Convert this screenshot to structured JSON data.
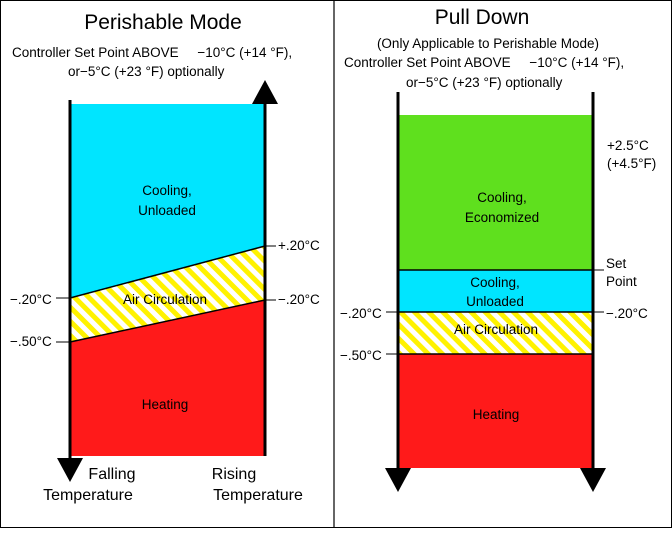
{
  "colors": {
    "cooling_unloaded": "#00e5ff",
    "cooling_economized": "#5fe01e",
    "heating": "#ff1a1a",
    "air_circulation_stripe_1": "#fff200",
    "air_circulation_stripe_2": "#ffffff",
    "lines": "#000000",
    "background": "#ffffff"
  },
  "perishable": {
    "title": "Perishable Mode",
    "setpoint_line1": "Controller Set Point ABOVE     −10°C (+14 °F),",
    "setpoint_line2": "or−5°C (+23 °F) optionally",
    "zones": {
      "cooling_unloaded": [
        "Cooling,",
        "Unloaded"
      ],
      "air_circulation": "Air Circulation",
      "heating": "Heating"
    },
    "left_labels": {
      "upper": "−.20°C",
      "lower": "−.50°C"
    },
    "right_labels": {
      "upper": "+.20°C",
      "lower": "−.20°C"
    },
    "falling": [
      "Falling",
      "Temperature"
    ],
    "rising": [
      "Rising",
      "Temperature"
    ],
    "arrows": {
      "left": "down-arrow-icon",
      "right": "up-arrow-icon"
    }
  },
  "pulldown": {
    "title": "Pull Down",
    "subtitle": "(Only Applicable to Perishable Mode)",
    "setpoint_line1": "Controller Set Point ABOVE     −10°C (+14 °F),",
    "setpoint_line2": "or−5°C (+23 °F) optionally",
    "zones": {
      "cooling_economized": [
        "Cooling,",
        "Economized"
      ],
      "cooling_unloaded": [
        "Cooling,",
        "Unloaded"
      ],
      "air_circulation": "Air Circulation",
      "heating": "Heating"
    },
    "right_top": [
      "+2.5°C",
      "(+4.5°F)"
    ],
    "set_point": [
      "Set",
      "Point"
    ],
    "left_labels": {
      "upper": "−.20°C",
      "lower": "−.50°C"
    },
    "right_labels": {
      "upper": "−.20°C"
    },
    "arrows": {
      "left": "down-arrow-icon",
      "right": "down-arrow-icon"
    }
  }
}
